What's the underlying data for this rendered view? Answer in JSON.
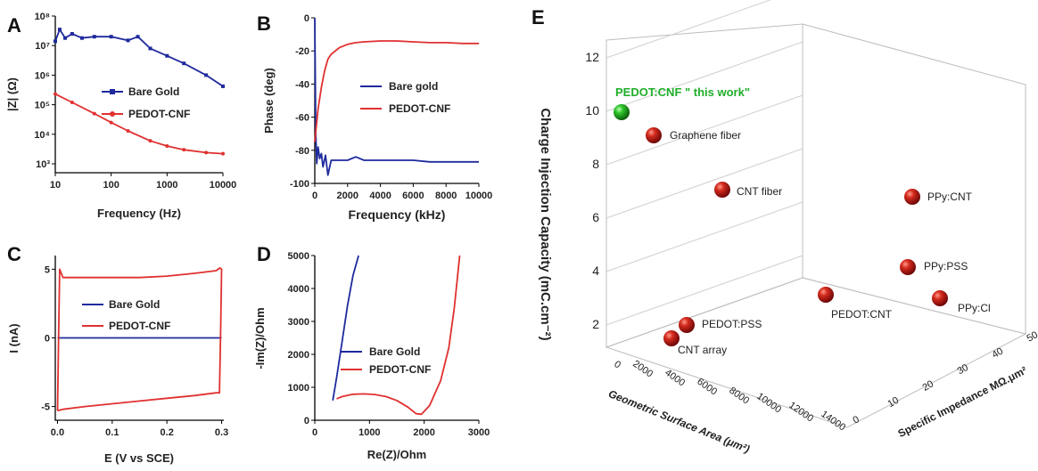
{
  "chart_data": [
    {
      "panel": "A",
      "type": "line",
      "xlabel": "Frequency (Hz)",
      "ylabel": "|Z| (Ω)",
      "xscale": "log",
      "yscale": "log",
      "xlim": [
        10,
        10000
      ],
      "ylim": [
        500,
        100000000
      ],
      "xticks": [
        "10",
        "100",
        "1000",
        "10000"
      ],
      "yticks": [
        "10³",
        "10⁴",
        "10⁵",
        "10⁶",
        "10⁷",
        "10⁸"
      ],
      "legend_position": "center",
      "series": [
        {
          "name": "Bare Gold",
          "color": "#1f2a9c",
          "x": [
            10,
            12,
            15,
            20,
            30,
            50,
            100,
            200,
            300,
            500,
            1000,
            2000,
            5000,
            10000
          ],
          "y": [
            14000000,
            35000000,
            18000000,
            25000000,
            18000000,
            20000000,
            20000000,
            15000000,
            20000000,
            8000000,
            4500000,
            2500000,
            1000000,
            420000
          ]
        },
        {
          "name": "PEDOT-CNF",
          "color": "#e03030",
          "x": [
            10,
            20,
            50,
            100,
            200,
            500,
            1000,
            2000,
            5000,
            10000
          ],
          "y": [
            230000,
            120000,
            50000,
            25000,
            13000,
            6000,
            4000,
            3000,
            2400,
            2200
          ]
        }
      ]
    },
    {
      "panel": "B",
      "type": "line",
      "xlabel": "Frequency (kHz)",
      "ylabel": "Phase (deg)",
      "xlim": [
        0,
        10000
      ],
      "ylim": [
        -100,
        0
      ],
      "xticks": [
        "0",
        "2000",
        "4000",
        "6000",
        "8000",
        "10000"
      ],
      "yticks": [
        "0",
        "-20",
        "-40",
        "-60",
        "-80",
        "-100"
      ],
      "legend_position": "center-right",
      "series": [
        {
          "name": "Bare gold",
          "color": "#1f2a9c",
          "x": [
            0,
            60,
            120,
            200,
            300,
            400,
            500,
            650,
            800,
            1000,
            1500,
            2000,
            2500,
            3000,
            4000,
            5000,
            6000,
            7000,
            8000,
            9000,
            10000
          ],
          "y": [
            0,
            -70,
            -88,
            -78,
            -85,
            -82,
            -90,
            -83,
            -95,
            -86,
            -86,
            -86,
            -84,
            -86,
            -86,
            -86,
            -86,
            -87,
            -87,
            -87,
            -87
          ]
        },
        {
          "name": "PEDOT-CNF",
          "color": "#e03030",
          "x": [
            0,
            100,
            200,
            400,
            600,
            800,
            1000,
            1500,
            2000,
            2500,
            3000,
            4000,
            5000,
            6000,
            7000,
            8000,
            9000,
            10000
          ],
          "y": [
            -75,
            -65,
            -55,
            -42,
            -32,
            -25,
            -22,
            -18,
            -16,
            -15,
            -14.5,
            -14,
            -14,
            -14.5,
            -15,
            -15,
            -15.5,
            -15.5
          ]
        }
      ]
    },
    {
      "panel": "C",
      "type": "line",
      "xlabel": "E (V vs SCE)",
      "ylabel": "I (nA)",
      "xlim": [
        0,
        0.3
      ],
      "ylim": [
        -6,
        6
      ],
      "xticks": [
        "0.0",
        "0.1",
        "0.2",
        "0.3"
      ],
      "yticks": [
        "5",
        "0",
        "-5"
      ],
      "legend_position": "center",
      "series": [
        {
          "name": "Bare Gold",
          "color": "#1f2a9c",
          "x": [
            0,
            0.3
          ],
          "y": [
            0,
            0
          ]
        },
        {
          "name": "PEDOT-CNF",
          "color": "#e03030",
          "x": [
            0,
            0.002,
            0.004,
            0.01,
            0.05,
            0.1,
            0.15,
            0.2,
            0.25,
            0.29,
            0.297,
            0.3,
            0.298,
            0.296,
            0.29,
            0.25,
            0.2,
            0.15,
            0.1,
            0.05,
            0.01,
            0
          ],
          "y": [
            -5.3,
            0,
            5.0,
            4.4,
            4.4,
            4.4,
            4.4,
            4.5,
            4.7,
            4.9,
            5.1,
            5.0,
            0,
            -4.0,
            -4.0,
            -4.2,
            -4.4,
            -4.6,
            -4.8,
            -5.0,
            -5.2,
            -5.3
          ]
        }
      ]
    },
    {
      "panel": "D",
      "type": "line",
      "xlabel": "Re(Z)/Ohm",
      "ylabel": "-Im(Z)/Ohm",
      "xlim": [
        0,
        3000
      ],
      "ylim": [
        0,
        5000
      ],
      "xticks": [
        "0",
        "1000",
        "2000",
        "3000"
      ],
      "yticks": [
        "5000",
        "4000",
        "3000",
        "2000",
        "1000",
        "0"
      ],
      "legend_position": "bottom-right",
      "series": [
        {
          "name": "Bare Gold",
          "color": "#1f2a9c",
          "x": [
            330,
            400,
            500,
            600,
            700,
            800
          ],
          "y": [
            600,
            1300,
            2400,
            3500,
            4400,
            5000
          ]
        },
        {
          "name": "PEDOT-CNF",
          "color": "#e03030",
          "x": [
            400,
            500,
            700,
            900,
            1100,
            1300,
            1500,
            1700,
            1850,
            1950,
            2100,
            2300,
            2450,
            2550,
            2650
          ],
          "y": [
            650,
            720,
            790,
            800,
            780,
            720,
            600,
            400,
            200,
            180,
            450,
            1200,
            2200,
            3400,
            5000
          ]
        }
      ]
    },
    {
      "panel": "E",
      "type": "scatter",
      "zlabel": "Charge Injection Capacity (mC.cm⁻²)",
      "xlabel": "Geometric Surface Area (μm²)",
      "ylabel": "Specific Impedance MΩ.μm²",
      "zticks": [
        "2",
        "4",
        "6",
        "8",
        "10",
        "12"
      ],
      "xticks": [
        "0",
        "2000",
        "4000",
        "6000",
        "8000",
        "10000",
        "12000",
        "14000"
      ],
      "yticks": [
        "0",
        "10",
        "20",
        "30",
        "40",
        "50"
      ],
      "points": [
        {
          "label": "PEDOT:CNF \" this work\"",
          "highlight": true,
          "color": "#22b22a"
        },
        {
          "label": "Graphene fiber",
          "color": "#c01818"
        },
        {
          "label": "CNT fiber",
          "color": "#c01818"
        },
        {
          "label": "PPy:CNT",
          "color": "#c01818"
        },
        {
          "label": "PPy:PSS",
          "color": "#c01818"
        },
        {
          "label": "PEDOT:CNT",
          "color": "#c01818"
        },
        {
          "label": "PPy:Cl",
          "color": "#c01818"
        },
        {
          "label": "PEDOT:PSS",
          "color": "#c01818"
        },
        {
          "label": "CNT array",
          "color": "#c01818"
        }
      ]
    }
  ]
}
